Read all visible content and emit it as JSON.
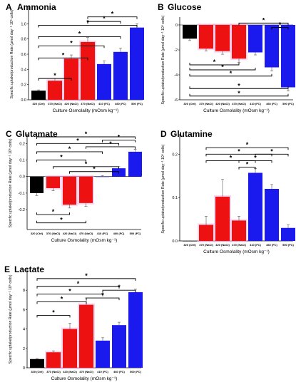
{
  "chart_data": [
    {
      "type": "bar",
      "letter": "A",
      "title": "Ammonia",
      "categories": [
        "320 (Ctrl)",
        "370 (NaCl)",
        "420 (NaCl)",
        "470 (NaCl)",
        "410 (FC)",
        "460 (FC)",
        "500 (FC)"
      ],
      "values": [
        0.12,
        0.25,
        0.54,
        0.76,
        0.47,
        0.63,
        0.95
      ],
      "errors": [
        0.01,
        0.03,
        0.05,
        0.06,
        0.04,
        0.05,
        0.05
      ],
      "colors": [
        "#000000",
        "#ee1111",
        "#ee1111",
        "#ee1111",
        "#1a1aee",
        "#1a1aee",
        "#1a1aee"
      ],
      "xlabel": "Culture Osmolality (mOsm kg⁻¹)",
      "ylabel": "Specific uptake/production Rate (μmol day⁻¹ 10⁶ cells)",
      "ylim": [
        0,
        1.2
      ],
      "yticks": [
        "0.0",
        "0.2",
        "0.4",
        "0.6",
        "0.8",
        "1.0"
      ],
      "ytick_values": [
        0,
        0.2,
        0.4,
        0.6,
        0.8,
        1.0
      ],
      "significance": [
        {
          "from": 0,
          "to": 2,
          "level": 0.28,
          "label": "*"
        },
        {
          "from": 0,
          "to": 3,
          "level": 0.55,
          "label": "*"
        },
        {
          "from": 0,
          "to": 4,
          "level": 0.71,
          "label": "*"
        },
        {
          "from": 0,
          "to": 5,
          "level": 0.83,
          "label": "*"
        },
        {
          "from": 0,
          "to": 6,
          "level": 0.98,
          "label": "*"
        },
        {
          "from": 3,
          "to": 5,
          "level": 1.03,
          "label": "*"
        },
        {
          "from": 3,
          "to": 6,
          "level": 1.09,
          "label": "*"
        }
      ]
    },
    {
      "type": "bar",
      "letter": "B",
      "title": "Glucose",
      "categories": [
        "320 (Ctrl)",
        "370 (NaCl)",
        "420 (NaCl)",
        "470 (NaCl)",
        "410 (FC)",
        "460 (FC)",
        "500 (FC)"
      ],
      "values": [
        -1.1,
        -1.9,
        -2.1,
        -2.7,
        -2.2,
        -3.4,
        -5.0
      ],
      "errors": [
        0.15,
        0.2,
        0.25,
        0.3,
        0.2,
        0.3,
        0.3
      ],
      "colors": [
        "#000000",
        "#ee1111",
        "#ee1111",
        "#ee1111",
        "#1a1aee",
        "#1a1aee",
        "#1a1aee"
      ],
      "xlabel": "Culture Osmolality (mOsm kg⁻¹)",
      "ylabel": "Specific uptake/production Rate (μmol day⁻¹ 10⁶ cells)",
      "ylim": [
        -6,
        0.4
      ],
      "yticks": [
        "0",
        "-2",
        "-4",
        "-6"
      ],
      "ytick_values": [
        0,
        -2,
        -4,
        -6
      ],
      "significance": [
        {
          "from": 0,
          "to": 3,
          "level": -3.2,
          "label": "*"
        },
        {
          "from": 0,
          "to": 4,
          "level": -3.6,
          "label": "*"
        },
        {
          "from": 0,
          "to": 5,
          "level": -4.1,
          "label": "*"
        },
        {
          "from": 0,
          "to": 6,
          "level": -5.1,
          "label": "*"
        },
        {
          "from": 0,
          "to": 6,
          "level": -5.7,
          "label": "*"
        },
        {
          "from": 3,
          "to": 6,
          "level": 0.15,
          "label": "*"
        },
        {
          "from": 5,
          "to": 6,
          "level": -0.2,
          "label": "*"
        }
      ]
    },
    {
      "type": "bar",
      "letter": "C",
      "title": "Glutamate",
      "categories": [
        "320 (Ctrl)",
        "370 (NaCl)",
        "420 (NaCl)",
        "470 (NaCl)",
        "410 (FC)",
        "460 (FC)",
        "500 (FC)"
      ],
      "values": [
        -0.1,
        -0.07,
        -0.17,
        -0.16,
        0.0,
        0.05,
        0.15
      ],
      "errors": [
        0.015,
        0.015,
        0.02,
        0.02,
        0.005,
        0.01,
        0.015
      ],
      "colors": [
        "#000000",
        "#ee1111",
        "#ee1111",
        "#ee1111",
        "#1a1aee",
        "#1a1aee",
        "#1a1aee"
      ],
      "xlabel": "Culture Osmolality (mOsm kg⁻¹)",
      "ylabel": "Specific uptake/production Rate (μmol day⁻¹ 10⁶ cells)",
      "ylim": [
        -0.32,
        0.24
      ],
      "yticks": [
        "0.2",
        "0.1",
        "0.0",
        "-0.1",
        "-0.2"
      ],
      "ytick_values": [
        0.2,
        0.1,
        0,
        -0.1,
        -0.2
      ],
      "significance": [
        {
          "from": 0,
          "to": 2,
          "level": -0.23,
          "label": "*"
        },
        {
          "from": 0,
          "to": 3,
          "level": -0.28,
          "label": "*"
        },
        {
          "from": 0,
          "to": 3,
          "level": 0.1,
          "label": "*"
        },
        {
          "from": 0,
          "to": 4,
          "level": 0.15,
          "label": "*"
        },
        {
          "from": 0,
          "to": 5,
          "level": 0.2,
          "label": "*"
        },
        {
          "from": 0,
          "to": 6,
          "level": 0.24,
          "label": "*"
        },
        {
          "from": 1,
          "to": 5,
          "level": 0.06,
          "label": "*"
        },
        {
          "from": 2,
          "to": 5,
          "level": 0.03,
          "label": "*"
        },
        {
          "from": 3,
          "to": 6,
          "level": 0.18,
          "label": "*"
        },
        {
          "from": 4,
          "to": 6,
          "level": 0.22,
          "label": "*"
        }
      ]
    },
    {
      "type": "bar",
      "letter": "D",
      "title": "Glutamine",
      "categories": [
        "320 (Ctrl)",
        "370 (NaCl)",
        "420 (NaCl)",
        "470 (NaCl)",
        "410 (FC)",
        "460 (FC)",
        "500 (FC)"
      ],
      "values": [
        0.0,
        0.037,
        0.102,
        0.047,
        0.157,
        0.12,
        0.03
      ],
      "errors": [
        0.0,
        0.02,
        0.04,
        0.01,
        0.01,
        0.01,
        0.007
      ],
      "colors": [
        "#000000",
        "#ee1111",
        "#ee1111",
        "#ee1111",
        "#1a1aee",
        "#1a1aee",
        "#1a1aee"
      ],
      "xlabel": "Culture Osmolality (mOsm kg⁻¹)",
      "ylabel": "Specific uptake/production Rate (μmol day⁻¹ 10⁶ cells)",
      "ylim": [
        0,
        0.24
      ],
      "yticks": [
        "0.0",
        "0.1",
        "0.2"
      ],
      "ytick_values": [
        0,
        0.1,
        0.2
      ],
      "significance": [
        {
          "from": 1,
          "to": 4,
          "level": 0.185,
          "label": "*"
        },
        {
          "from": 1,
          "to": 5,
          "level": 0.2,
          "label": "*"
        },
        {
          "from": 1,
          "to": 6,
          "level": 0.215,
          "label": "*"
        },
        {
          "from": 3,
          "to": 4,
          "level": 0.17,
          "label": "*"
        },
        {
          "from": 3,
          "to": 5,
          "level": 0.185,
          "label": "*"
        },
        {
          "from": 4,
          "to": 6,
          "level": 0.2,
          "label": "*"
        }
      ]
    },
    {
      "type": "bar",
      "letter": "E",
      "title": "Lactate",
      "categories": [
        "320 (Ctrl)",
        "370 (NaCl)",
        "420 (NaCl)",
        "470 (NaCl)",
        "410 (FC)",
        "460 (FC)",
        "500 (FC)"
      ],
      "values": [
        0.9,
        1.6,
        4.0,
        6.5,
        2.8,
        4.4,
        7.8
      ],
      "errors": [
        0.05,
        0.15,
        0.6,
        0.7,
        0.3,
        0.3,
        0.3
      ],
      "colors": [
        "#000000",
        "#ee1111",
        "#ee1111",
        "#ee1111",
        "#1a1aee",
        "#1a1aee",
        "#1a1aee"
      ],
      "xlabel": "Culture Osmolality (mOsm kg⁻¹)",
      "ylabel": "Specific uptake/production Rate (μmol day⁻¹ 10⁶ cells)",
      "ylim": [
        0,
        10
      ],
      "yticks": [
        "0",
        "2",
        "4",
        "6",
        "8"
      ],
      "ytick_values": [
        0,
        2,
        4,
        6,
        8
      ],
      "significance": [
        {
          "from": 0,
          "to": 2,
          "level": 5.4,
          "label": "*"
        },
        {
          "from": 0,
          "to": 3,
          "level": 6.8,
          "label": "*"
        },
        {
          "from": 0,
          "to": 4,
          "level": 7.6,
          "label": "*"
        },
        {
          "from": 0,
          "to": 5,
          "level": 8.4,
          "label": "*"
        },
        {
          "from": 0,
          "to": 6,
          "level": 9.2,
          "label": "*"
        },
        {
          "from": 3,
          "to": 5,
          "level": 7.2,
          "label": "*"
        },
        {
          "from": 4,
          "to": 6,
          "level": 8.0,
          "label": "*"
        }
      ]
    }
  ]
}
